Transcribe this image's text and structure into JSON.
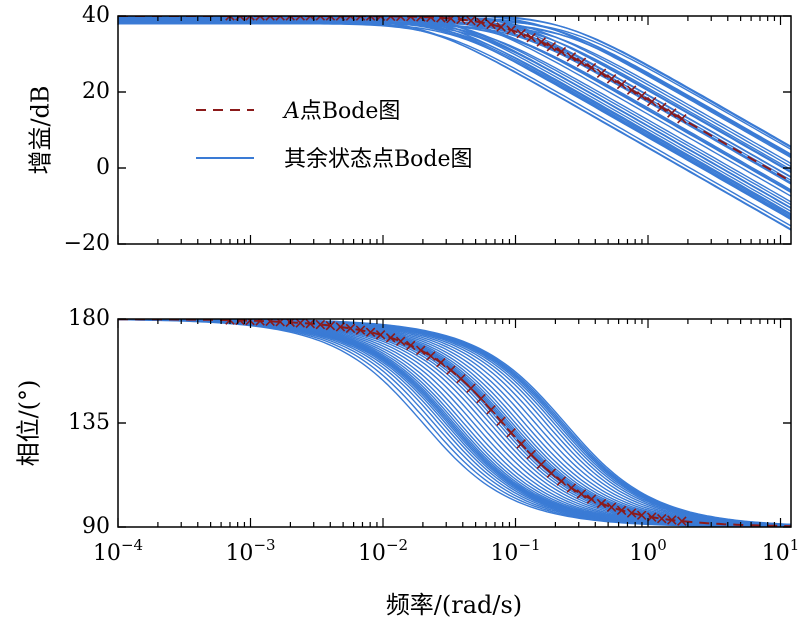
{
  "chart_data": [
    {
      "type": "line",
      "panel": "top",
      "title": "",
      "xlabel": "",
      "ylabel": "增益/dB",
      "xscale": "log",
      "xlim": [
        0.0001,
        12
      ],
      "ylim": [
        -20,
        40
      ],
      "yticks": [
        40,
        20,
        0,
        -20
      ],
      "ytick_labels": [
        "40",
        "20",
        "0",
        "−20"
      ],
      "legend": {
        "placement": "upper-left-inside",
        "entries": [
          {
            "name_italic": "A",
            "name_rest": "点Bode图",
            "style": "dashed-with-x",
            "color": "#8B1A1A"
          },
          {
            "name": "其余状态点Bode图",
            "style": "solid",
            "color": "#3A7BD5"
          }
        ]
      },
      "series": [
        {
          "name": "A点Bode图",
          "model": "first-order-lag",
          "k_db": 40.0,
          "corner_freq_rad_s": 0.08,
          "marker": "x",
          "marker_range": [
            0.0007,
            1.8
          ],
          "color": "#8B1A1A"
        },
        {
          "name": "其余状态点Bode图",
          "model": "first-order-lag family",
          "k_db_range": [
            38.0,
            40.5
          ],
          "corner_freq_range_rad_s": [
            0.02,
            0.25
          ],
          "curve_count": 40,
          "color": "#3A7BD5"
        }
      ]
    },
    {
      "type": "line",
      "panel": "bottom",
      "title": "",
      "xlabel": "频率/(rad/s)",
      "ylabel": "相位/(°)",
      "xscale": "log",
      "xlim": [
        0.0001,
        12
      ],
      "ylim": [
        90,
        180
      ],
      "yticks": [
        180,
        135,
        90
      ],
      "ytick_labels": [
        "180",
        "135",
        "90"
      ],
      "xticks": [
        {
          "base": "10",
          "exp": "−4"
        },
        {
          "base": "10",
          "exp": "−3"
        },
        {
          "base": "10",
          "exp": "−2"
        },
        {
          "base": "10",
          "exp": "−1"
        },
        {
          "base": "10",
          "exp": "0"
        },
        {
          "base": "10",
          "exp": "1"
        }
      ],
      "series": [
        {
          "name": "A点Bode图",
          "model": "phase = 90 + atan(w0/w)",
          "corner_freq_rad_s": 0.08,
          "phase_range_deg": [
            90,
            180
          ],
          "color": "#8B1A1A"
        },
        {
          "name": "其余状态点Bode图",
          "corner_freq_range_rad_s": [
            0.02,
            0.25
          ],
          "phase_range_deg": [
            90,
            180
          ],
          "curve_count": 40,
          "color": "#3A7BD5"
        }
      ]
    }
  ]
}
